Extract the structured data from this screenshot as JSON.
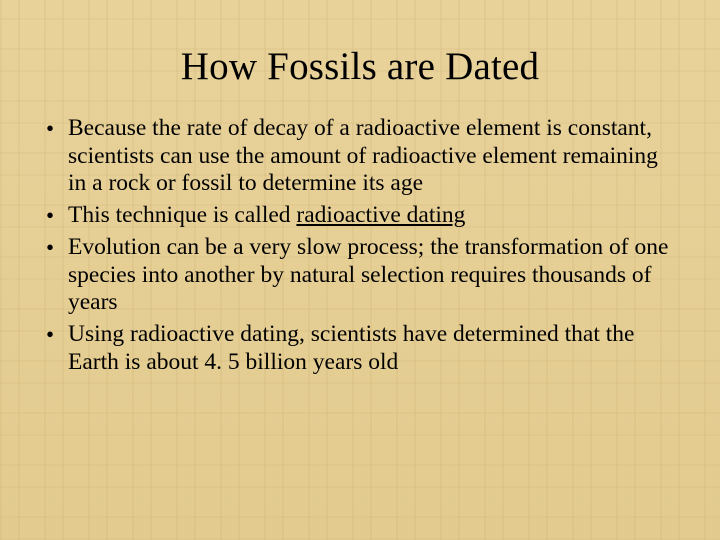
{
  "slide": {
    "title": "How Fossils are Dated",
    "bullets": [
      {
        "text": "Because the rate of decay of a radioactive element is constant, scientists can use the amount of radioactive element remaining in a rock or fossil to determine its age"
      },
      {
        "prefix": "This technique is called ",
        "underlined": "radioactive dating"
      },
      {
        "text": "Evolution can be a very slow process; the transformation of one species into another by natural selection requires thousands of years"
      },
      {
        "text": "Using radioactive dating, scientists have determined that the Earth is about 4. 5 billion years old"
      }
    ]
  },
  "style": {
    "background_base": "#e6d096",
    "text_color": "#000000",
    "title_fontsize_pt": 29,
    "body_fontsize_pt": 18,
    "font_family": "Times New Roman"
  }
}
